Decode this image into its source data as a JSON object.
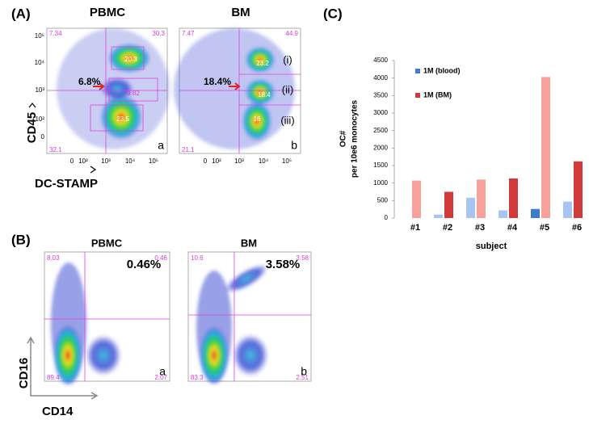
{
  "chart_data": {
    "type": "bar",
    "panel_label": "(C)",
    "categories": [
      "#1",
      "#2",
      "#3",
      "#4",
      "#5",
      "#6"
    ],
    "series": [
      {
        "name": "1M (blood)",
        "color": "#3d7cc9",
        "values": [
          0,
          100,
          580,
          220,
          260,
          470
        ],
        "bar_colors": [
          "#a9c4ee",
          "#a9c4ee",
          "#a9c4ee",
          "#a9c4ee",
          "#3d7cc9",
          "#a9c4ee"
        ]
      },
      {
        "name": "1M (BM)",
        "color": "#d03a3a",
        "values": [
          1070,
          750,
          1100,
          1130,
          4030,
          1620
        ],
        "bar_colors": [
          "#f7a09c",
          "#d03a3a",
          "#f7a09c",
          "#d03a3a",
          "#f7a09c",
          "#d03a3a"
        ]
      }
    ],
    "ylim": [
      0,
      4500
    ],
    "yticks": [
      0,
      500,
      1000,
      1500,
      2000,
      2500,
      3000,
      3500,
      4000,
      4500
    ],
    "ylabel_lines": [
      "OC#",
      "per 10e6 monocytes"
    ],
    "xlabel": "subject",
    "grid": false
  },
  "panel_a": {
    "label": "(A)",
    "y_axis": "CD45",
    "x_axis": "DC-STAMP",
    "ticks": [
      "0",
      "10²",
      "10³",
      "10⁴",
      "10⁵"
    ],
    "plots": [
      {
        "title": "PBMC",
        "gate_percent": "6.8%",
        "corner": "a",
        "quadrants": [
          "7.34",
          "30.3",
          "20.3",
          "9.82",
          "23.5",
          "32.1"
        ]
      },
      {
        "title": "BM",
        "gate_percent": "18.4%",
        "corner": "b",
        "quadrants": [
          "7.47",
          "44.9",
          "23.2",
          "18.4",
          "16",
          "21.1"
        ],
        "populations": [
          "(i)",
          "(ii)",
          "(iii)"
        ]
      }
    ]
  },
  "panel_b": {
    "label": "(B)",
    "y_axis": "CD16",
    "x_axis": "CD14",
    "plots": [
      {
        "title": "PBMC",
        "percent": "0.46%",
        "corner": "a",
        "quadrants": [
          "8.03",
          "0.46",
          "89.4",
          "2.07"
        ]
      },
      {
        "title": "BM",
        "percent": "3.58%",
        "corner": "b",
        "quadrants": [
          "10.6",
          "3.58",
          "83.3",
          "2.51"
        ]
      }
    ]
  }
}
